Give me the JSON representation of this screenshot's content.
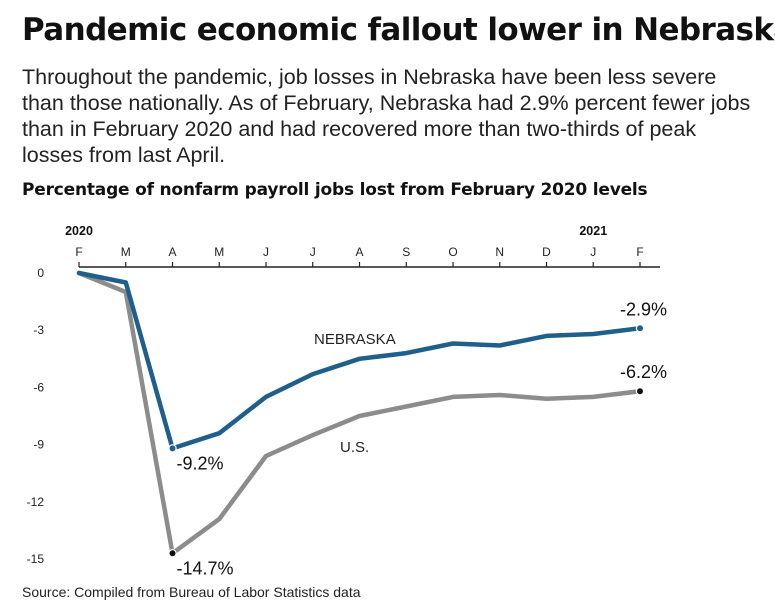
{
  "headline": "Pandemic economic fallout lower in Nebraska",
  "subhead": "Throughout the pandemic, job losses in Nebraska have been less severe than those nationally. As of February, Nebraska had 2.9% percent fewer jobs than in February 2020 and had recovered more than two-thirds of peak losses from last April.",
  "source": "Source: Compiled from Bureau of Labor Statistics data",
  "colors": {
    "nebraska": "#1f5f8b",
    "us": "#8c8c8c",
    "axis": "#222222"
  },
  "chart_data": {
    "type": "line",
    "title": "Percentage of nonfarm payroll jobs lost from February 2020 levels",
    "xlabel": "",
    "ylabel": "",
    "categories": [
      "F",
      "M",
      "A",
      "M",
      "J",
      "J",
      "A",
      "S",
      "O",
      "N",
      "D",
      "J",
      "F"
    ],
    "year_labels": [
      {
        "index": 0,
        "text": "2020"
      },
      {
        "index": 11,
        "text": "2021"
      }
    ],
    "yticks": [
      0,
      -3,
      -6,
      -9,
      -12,
      -15
    ],
    "ylim": [
      -15,
      0
    ],
    "grid": false,
    "series": [
      {
        "key": "nebraska",
        "name": "NEBRASKA",
        "values": [
          0,
          -0.5,
          -9.2,
          -8.4,
          -6.5,
          -5.3,
          -4.5,
          -4.2,
          -3.7,
          -3.8,
          -3.3,
          -3.2,
          -2.9
        ],
        "labels": [
          {
            "index": 2,
            "text": "-9.2%"
          },
          {
            "index": 12,
            "text": "-2.9%"
          }
        ]
      },
      {
        "key": "us",
        "name": "U.S.",
        "values": [
          0,
          -1.0,
          -14.7,
          -12.9,
          -9.6,
          -8.5,
          -7.5,
          -7.0,
          -6.5,
          -6.4,
          -6.6,
          -6.5,
          -6.2
        ],
        "labels": [
          {
            "index": 2,
            "text": "-14.7%"
          },
          {
            "index": 12,
            "text": "-6.2%"
          }
        ]
      }
    ]
  }
}
